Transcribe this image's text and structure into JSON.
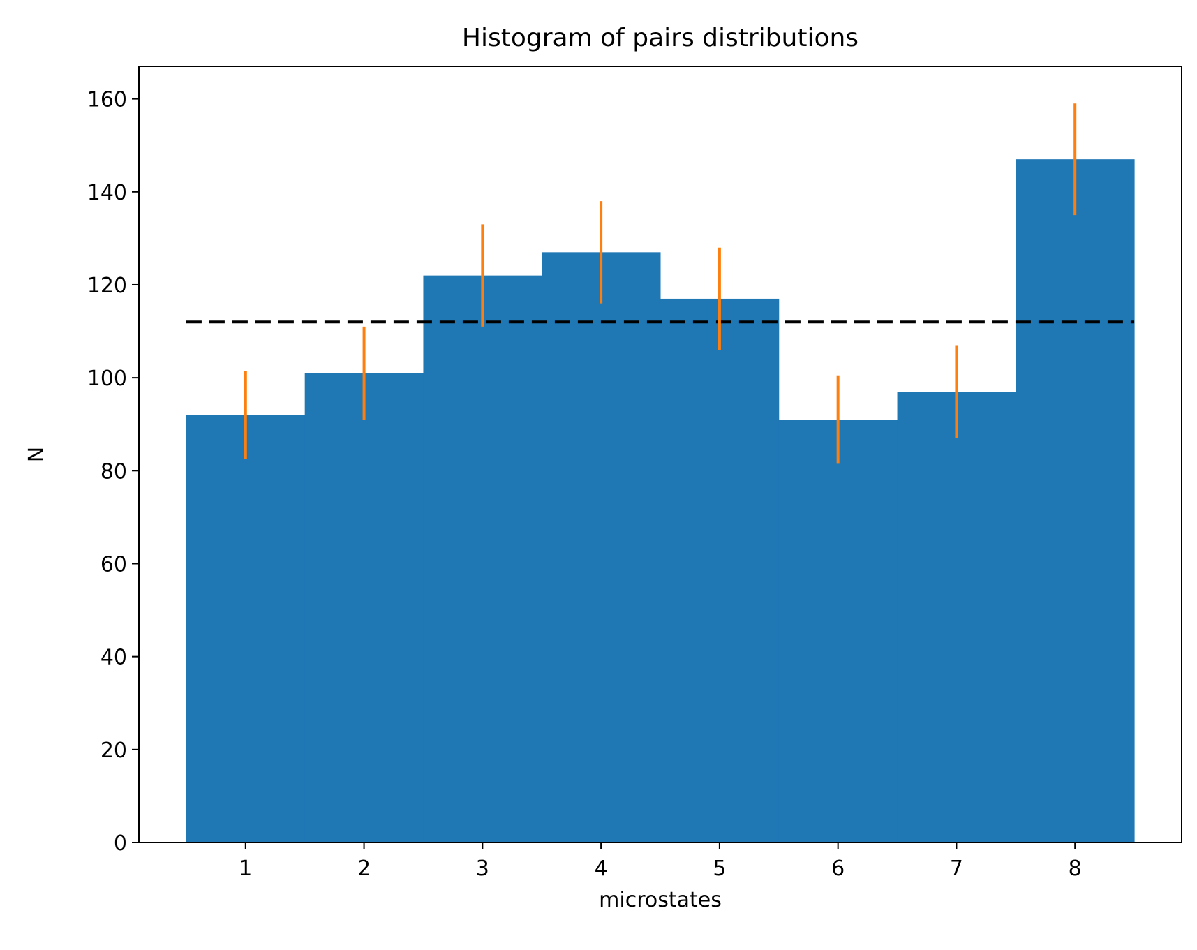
{
  "chart_data": {
    "type": "bar",
    "title": "Histogram of pairs distributions",
    "xlabel": "microstates",
    "ylabel": "N",
    "categories": [
      "1",
      "2",
      "3",
      "4",
      "5",
      "6",
      "7",
      "8"
    ],
    "x": [
      1,
      2,
      3,
      4,
      5,
      6,
      7,
      8
    ],
    "values": [
      92,
      101,
      122,
      127,
      117,
      91,
      97,
      147
    ],
    "error_bars": [
      {
        "x": 1,
        "low": 82.5,
        "high": 101.5
      },
      {
        "x": 2,
        "low": 91,
        "high": 111
      },
      {
        "x": 3,
        "low": 111,
        "high": 133
      },
      {
        "x": 4,
        "low": 116,
        "high": 138
      },
      {
        "x": 5,
        "low": 106,
        "high": 128
      },
      {
        "x": 6,
        "low": 81.5,
        "high": 100.5
      },
      {
        "x": 7,
        "low": 87,
        "high": 107
      },
      {
        "x": 8,
        "low": 135,
        "high": 159
      }
    ],
    "reference_line": {
      "y": 112,
      "style": "dashed",
      "color": "#000000"
    },
    "xlim": [
      0.1,
      8.9
    ],
    "ylim": [
      0,
      167
    ],
    "xticks": [
      1,
      2,
      3,
      4,
      5,
      6,
      7,
      8
    ],
    "yticks": [
      0,
      20,
      40,
      60,
      80,
      100,
      120,
      140,
      160
    ],
    "grid": false,
    "legend": "none",
    "bar_color": "#1f77b4",
    "errorbar_color": "#ff7f0e"
  }
}
